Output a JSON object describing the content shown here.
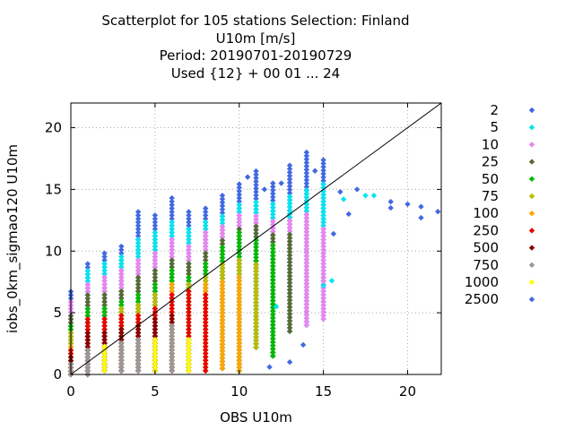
{
  "title_lines": [
    "Scatterplot for  105 stations Selection: Finland",
    "U10m [m/s]",
    "Period: 20190701-20190729",
    "Used {12} + 00 01 ... 24"
  ],
  "chart_data": {
    "type": "scatter",
    "xlabel": "OBS U10m",
    "ylabel": "iobs_0km_sigmao120 U10m",
    "xlim": [
      0,
      22
    ],
    "ylim": [
      0,
      22
    ],
    "xticks": [
      0,
      5,
      10,
      15,
      20
    ],
    "yticks": [
      0,
      5,
      10,
      15,
      20
    ],
    "grid": true,
    "legend_position": "right",
    "diagonal_line": true,
    "series": [
      {
        "name": "2",
        "color": "#4169e1"
      },
      {
        "name": "5",
        "color": "#00e5ee"
      },
      {
        "name": "10",
        "color": "#ee82ee"
      },
      {
        "name": "25",
        "color": "#556b2f"
      },
      {
        "name": "50",
        "color": "#00bb00"
      },
      {
        "name": "75",
        "color": "#bbbb00"
      },
      {
        "name": "100",
        "color": "#ffa500"
      },
      {
        "name": "250",
        "color": "#ee0000"
      },
      {
        "name": "500",
        "color": "#8b0000"
      },
      {
        "name": "750",
        "color": "#999999"
      },
      {
        "name": "1000",
        "color": "#ffff00"
      },
      {
        "name": "2500",
        "color": "#4169e1"
      }
    ],
    "columns": [
      {
        "x": 0,
        "ymin": 0.0,
        "ymax": 6.8,
        "layers": [
          [
            0,
            6.8
          ],
          [
            2,
            6.0
          ],
          [
            3,
            5.0
          ],
          [
            4,
            4.0
          ],
          [
            5,
            3.5
          ],
          [
            6,
            2.5
          ],
          [
            7,
            2.0
          ],
          [
            8,
            1.5
          ],
          [
            9,
            1.0
          ]
        ]
      },
      {
        "x": 1,
        "ymin": 0.0,
        "ymax": 9.0,
        "layers": [
          [
            0,
            9.0
          ],
          [
            1,
            8.5
          ],
          [
            2,
            7.5
          ],
          [
            3,
            6.5
          ],
          [
            4,
            5.5
          ],
          [
            7,
            4.5
          ],
          [
            8,
            3.5
          ],
          [
            9,
            2.0
          ]
        ]
      },
      {
        "x": 2,
        "ymin": 0.3,
        "ymax": 10.0,
        "layers": [
          [
            0,
            10.0
          ],
          [
            1,
            9.0
          ],
          [
            2,
            8.0
          ],
          [
            3,
            6.5
          ],
          [
            4,
            5.5
          ],
          [
            7,
            4.5
          ],
          [
            8,
            3.5
          ],
          [
            10,
            2.5
          ]
        ]
      },
      {
        "x": 3,
        "ymin": 0.3,
        "ymax": 10.5,
        "layers": [
          [
            0,
            10.5
          ],
          [
            1,
            9.8
          ],
          [
            2,
            8.5
          ],
          [
            3,
            7.0
          ],
          [
            4,
            6.0
          ],
          [
            5,
            5.5
          ],
          [
            7,
            4.8
          ],
          [
            8,
            3.8
          ],
          [
            9,
            2.8
          ]
        ]
      },
      {
        "x": 4,
        "ymin": 0.3,
        "ymax": 13.2,
        "layers": [
          [
            0,
            13.2
          ],
          [
            1,
            11.0
          ],
          [
            2,
            9.5
          ],
          [
            3,
            8.0
          ],
          [
            4,
            6.5
          ],
          [
            5,
            5.8
          ],
          [
            7,
            5.0
          ],
          [
            8,
            4.0
          ],
          [
            9,
            3.0
          ]
        ]
      },
      {
        "x": 5,
        "ymin": 0.3,
        "ymax": 13.0,
        "layers": [
          [
            0,
            13.0
          ],
          [
            1,
            11.5
          ],
          [
            2,
            10.0
          ],
          [
            3,
            8.5
          ],
          [
            4,
            7.5
          ],
          [
            5,
            6.5
          ],
          [
            7,
            5.5
          ],
          [
            8,
            4.5
          ],
          [
            10,
            3.0
          ]
        ]
      },
      {
        "x": 6,
        "ymin": 0.3,
        "ymax": 14.3,
        "layers": [
          [
            0,
            14.3
          ],
          [
            1,
            12.5
          ],
          [
            2,
            11.0
          ],
          [
            3,
            9.5
          ],
          [
            4,
            8.5
          ],
          [
            6,
            7.5
          ],
          [
            7,
            6.5
          ],
          [
            8,
            5.0
          ],
          [
            9,
            4.0
          ]
        ]
      },
      {
        "x": 7,
        "ymin": 0.3,
        "ymax": 13.2,
        "layers": [
          [
            0,
            13.2
          ],
          [
            1,
            12.0
          ],
          [
            2,
            10.5
          ],
          [
            3,
            9.0
          ],
          [
            4,
            8.0
          ],
          [
            5,
            7.5
          ],
          [
            7,
            6.8
          ],
          [
            10,
            3.0
          ]
        ]
      },
      {
        "x": 8,
        "ymin": 0.3,
        "ymax": 13.5,
        "layers": [
          [
            0,
            13.5
          ],
          [
            1,
            12.5
          ],
          [
            2,
            11.5
          ],
          [
            3,
            10.0
          ],
          [
            4,
            9.0
          ],
          [
            5,
            8.0
          ],
          [
            6,
            7.5
          ],
          [
            7,
            6.5
          ]
        ]
      },
      {
        "x": 9,
        "ymin": 0.5,
        "ymax": 14.5,
        "layers": [
          [
            0,
            14.5
          ],
          [
            1,
            13.0
          ],
          [
            2,
            12.0
          ],
          [
            3,
            11.0
          ],
          [
            4,
            10.5
          ],
          [
            5,
            9.0
          ],
          [
            6,
            7.5
          ]
        ]
      },
      {
        "x": 10,
        "ymin": 0.3,
        "ymax": 15.5,
        "layers": [
          [
            0,
            15.5
          ],
          [
            1,
            14.0
          ],
          [
            2,
            13.0
          ],
          [
            3,
            12.0
          ],
          [
            4,
            11.5
          ],
          [
            5,
            9.5
          ],
          [
            6,
            8.0
          ]
        ]
      },
      {
        "x": 11,
        "ymin": 2.2,
        "ymax": 16.5,
        "layers": [
          [
            0,
            16.5
          ],
          [
            1,
            14.0
          ],
          [
            2,
            13.0
          ],
          [
            3,
            12.0
          ],
          [
            4,
            11.0
          ],
          [
            5,
            9.0
          ]
        ]
      },
      {
        "x": 12,
        "ymin": 1.5,
        "ymax": 15.5,
        "layers": [
          [
            0,
            15.5
          ],
          [
            1,
            14.0
          ],
          [
            2,
            12.5
          ],
          [
            3,
            11.5
          ],
          [
            4,
            10.5
          ]
        ]
      },
      {
        "x": 13,
        "ymin": 3.5,
        "ymax": 17.2,
        "layers": [
          [
            0,
            17.2
          ],
          [
            1,
            14.5
          ],
          [
            2,
            12.5
          ],
          [
            3,
            11.5
          ]
        ]
      },
      {
        "x": 14,
        "ymin": 4.0,
        "ymax": 18.0,
        "layers": [
          [
            0,
            18.0
          ],
          [
            1,
            15.0
          ],
          [
            2,
            13.0
          ]
        ]
      },
      {
        "x": 15,
        "ymin": 4.5,
        "ymax": 17.5,
        "layers": [
          [
            0,
            17.5
          ],
          [
            1,
            15.5
          ],
          [
            2,
            12.0
          ]
        ]
      }
    ],
    "extra_points": [
      {
        "x": 11.8,
        "y": 0.6,
        "series": 0
      },
      {
        "x": 12.2,
        "y": 5.5,
        "series": 1
      },
      {
        "x": 13.0,
        "y": 1.0,
        "series": 0
      },
      {
        "x": 13.8,
        "y": 2.4,
        "series": 0
      },
      {
        "x": 15.5,
        "y": 7.6,
        "series": 1
      },
      {
        "x": 15.0,
        "y": 7.2,
        "series": 1
      },
      {
        "x": 15.6,
        "y": 11.4,
        "series": 0
      },
      {
        "x": 16.0,
        "y": 14.8,
        "series": 0
      },
      {
        "x": 16.2,
        "y": 14.2,
        "series": 1
      },
      {
        "x": 16.5,
        "y": 13.0,
        "series": 0
      },
      {
        "x": 17.0,
        "y": 15.0,
        "series": 0
      },
      {
        "x": 17.5,
        "y": 14.5,
        "series": 1
      },
      {
        "x": 18.0,
        "y": 14.5,
        "series": 1
      },
      {
        "x": 19.0,
        "y": 14.0,
        "series": 0
      },
      {
        "x": 19.0,
        "y": 13.5,
        "series": 0
      },
      {
        "x": 20.0,
        "y": 13.8,
        "series": 0
      },
      {
        "x": 20.8,
        "y": 13.6,
        "series": 0
      },
      {
        "x": 20.8,
        "y": 12.7,
        "series": 0
      },
      {
        "x": 21.8,
        "y": 13.2,
        "series": 0
      },
      {
        "x": 10.5,
        "y": 16.0,
        "series": 0
      },
      {
        "x": 11.5,
        "y": 15.0,
        "series": 0
      },
      {
        "x": 12.5,
        "y": 15.5,
        "series": 0
      },
      {
        "x": 14.5,
        "y": 16.5,
        "series": 0
      }
    ]
  }
}
